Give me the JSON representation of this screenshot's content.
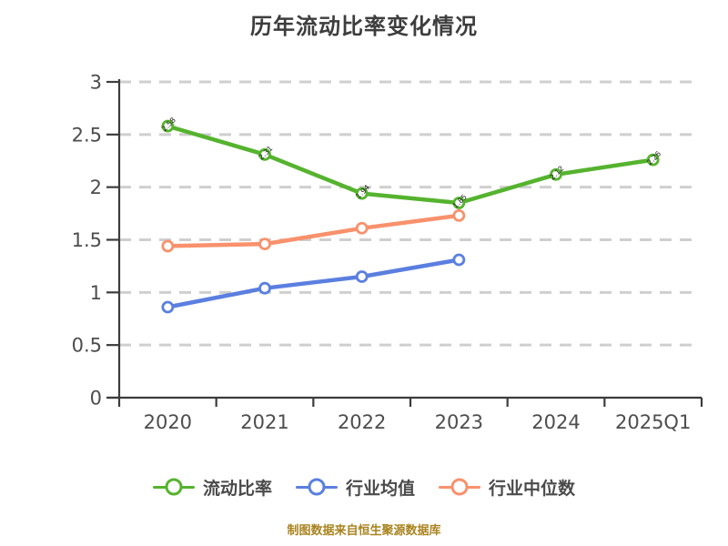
{
  "chart_data": {
    "type": "line",
    "title": "历年流动比率变化情况",
    "categories": [
      "2020",
      "2021",
      "2022",
      "2023",
      "2024",
      "2025Q1"
    ],
    "series": [
      {
        "name": "流动比率",
        "color": "#55b32e",
        "values": [
          2.58,
          2.31,
          1.94,
          1.85,
          2.12,
          2.26
        ],
        "point_labels": true
      },
      {
        "name": "行业均值",
        "color": "#5b7fe0",
        "values": [
          0.86,
          1.04,
          1.15,
          1.31,
          null,
          null
        ],
        "point_labels": false
      },
      {
        "name": "行业中位数",
        "color": "#f8916c",
        "values": [
          1.44,
          1.46,
          1.61,
          1.73,
          null,
          null
        ],
        "point_labels": false
      }
    ],
    "xlabel": "",
    "ylabel": "",
    "ylim": [
      0,
      3
    ],
    "yticks": [
      0,
      0.5,
      1,
      1.5,
      2,
      2.5,
      3
    ],
    "ytick_labels": [
      "0",
      "0.5",
      "1",
      "1.5",
      "2",
      "2.5",
      "3"
    ],
    "grid": "horizontal-dashed",
    "legend_position": "bottom"
  },
  "footer": {
    "note": "制图数据来自恒生聚源数据库"
  },
  "colors": {
    "background": "#ffffff",
    "grid": "#cfcfcf",
    "axis": "#3c3c3c",
    "tick_text": "#4d4d4d",
    "title_text": "#3d3d3d",
    "legend_text": "#4a4a4a",
    "footer_text": "#a9831f",
    "point_label_text": "#1e1e1e",
    "marker_fill": "#ffffff"
  }
}
